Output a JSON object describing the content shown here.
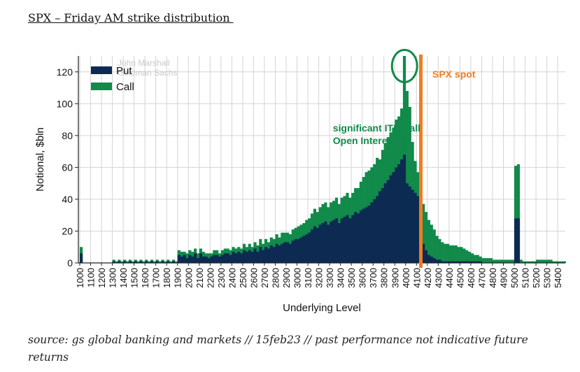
{
  "title": "SPX – Friday AM strike distribution ",
  "source": "source: gs global banking and markets // 15feb23 // past performance not indicative future returns",
  "colors": {
    "put": "#0d2b52",
    "call": "#118a4a",
    "spot": "#f07d1f",
    "circle": "#118a4a",
    "grid": "#d4d4d4"
  },
  "chart_data": {
    "type": "area",
    "title": "",
    "xlabel": "Underlying Level",
    "ylabel": "Notional, $bln",
    "ylim": [
      0,
      130
    ],
    "yticks": [
      0,
      20,
      40,
      60,
      80,
      100,
      120
    ],
    "xticks": [
      1000,
      1100,
      1200,
      1300,
      1400,
      1500,
      1600,
      1700,
      1800,
      1900,
      2000,
      2100,
      2200,
      2300,
      2400,
      2500,
      2600,
      2700,
      2800,
      2900,
      3000,
      3100,
      3200,
      3300,
      3400,
      3500,
      3600,
      3700,
      3800,
      3900,
      4000,
      4100,
      4200,
      4300,
      4400,
      4500,
      4600,
      4700,
      4800,
      4900,
      5000,
      5100,
      5200,
      5300,
      5400
    ],
    "grid": true,
    "legend": {
      "placement": "top-left",
      "entries": [
        "Put",
        "Call"
      ]
    },
    "watermark": "John Marshall\nGoldman Sachs",
    "annotations": [
      {
        "text": "significant ITM call\nOpen Interest",
        "x": 3550,
        "y": 86
      },
      {
        "text": "SPX spot",
        "x": 4270,
        "y": 122
      }
    ],
    "spot": 4140,
    "circle_center": [
      3990,
      125
    ],
    "x": [
      1000,
      1025,
      1050,
      1075,
      1100,
      1125,
      1150,
      1175,
      1200,
      1225,
      1250,
      1275,
      1300,
      1325,
      1350,
      1375,
      1400,
      1425,
      1450,
      1475,
      1500,
      1525,
      1550,
      1575,
      1600,
      1625,
      1650,
      1675,
      1700,
      1725,
      1750,
      1775,
      1800,
      1825,
      1850,
      1875,
      1900,
      1925,
      1950,
      1975,
      2000,
      2025,
      2050,
      2075,
      2100,
      2125,
      2150,
      2175,
      2200,
      2225,
      2250,
      2275,
      2300,
      2325,
      2350,
      2375,
      2400,
      2425,
      2450,
      2475,
      2500,
      2525,
      2550,
      2575,
      2600,
      2625,
      2650,
      2675,
      2700,
      2725,
      2750,
      2775,
      2800,
      2825,
      2850,
      2875,
      2900,
      2925,
      2950,
      2975,
      3000,
      3025,
      3050,
      3075,
      3100,
      3125,
      3150,
      3175,
      3200,
      3225,
      3250,
      3275,
      3300,
      3325,
      3350,
      3375,
      3400,
      3425,
      3450,
      3475,
      3500,
      3525,
      3550,
      3575,
      3600,
      3625,
      3650,
      3675,
      3700,
      3725,
      3750,
      3775,
      3800,
      3825,
      3850,
      3875,
      3900,
      3925,
      3950,
      3975,
      4000,
      4025,
      4050,
      4075,
      4100,
      4125,
      4150,
      4175,
      4200,
      4225,
      4250,
      4275,
      4300,
      4325,
      4350,
      4375,
      4400,
      4425,
      4450,
      4475,
      4500,
      4525,
      4550,
      4575,
      4600,
      4625,
      4650,
      4675,
      4700,
      4725,
      4750,
      4775,
      4800,
      4825,
      4850,
      4875,
      4900,
      4925,
      4950,
      4975,
      5000,
      5025,
      5050,
      5075,
      5100,
      5125,
      5150,
      5175,
      5200,
      5225,
      5250,
      5275,
      5300,
      5325,
      5350,
      5375,
      5400,
      5425,
      5450
    ],
    "series": [
      {
        "name": "Put",
        "values": [
          6,
          0,
          0,
          0,
          0,
          0,
          0,
          0,
          0,
          0,
          0,
          0,
          1,
          0,
          1,
          0,
          1,
          0,
          1,
          0,
          1,
          0,
          1,
          0,
          1,
          0,
          1,
          0,
          1,
          0,
          1,
          0,
          1,
          0,
          1,
          0,
          5,
          4,
          5,
          3,
          5,
          4,
          6,
          3,
          6,
          4,
          4,
          3,
          4,
          5,
          5,
          4,
          5,
          6,
          6,
          5,
          7,
          6,
          7,
          6,
          8,
          7,
          8,
          7,
          9,
          7,
          10,
          8,
          10,
          9,
          11,
          10,
          12,
          11,
          12,
          13,
          13,
          12,
          14,
          15,
          15,
          16,
          17,
          18,
          19,
          21,
          23,
          22,
          24,
          25,
          26,
          24,
          26,
          27,
          28,
          25,
          28,
          29,
          30,
          28,
          30,
          32,
          31,
          33,
          34,
          35,
          36,
          38,
          40,
          42,
          45,
          47,
          50,
          52,
          55,
          57,
          60,
          62,
          65,
          68,
          50,
          48,
          46,
          44,
          42,
          40,
          12,
          8,
          5,
          4,
          3,
          2,
          2,
          1,
          1,
          1,
          1,
          1,
          1,
          1,
          1,
          1,
          1,
          1,
          1,
          1,
          1,
          1,
          0,
          0,
          0,
          0,
          0,
          0,
          0,
          0,
          0,
          0,
          0,
          0,
          28,
          28,
          0,
          0,
          0,
          0,
          0,
          0,
          0,
          0,
          0,
          0,
          0,
          0,
          0,
          0,
          0,
          0,
          0
        ]
      },
      {
        "name": "Call",
        "values": [
          4,
          0,
          0,
          0,
          0,
          0,
          0,
          0,
          0,
          0,
          0,
          0,
          1,
          1,
          1,
          1,
          1,
          1,
          1,
          1,
          1,
          1,
          1,
          1,
          1,
          1,
          1,
          1,
          1,
          1,
          1,
          1,
          1,
          1,
          1,
          1,
          3,
          3,
          2,
          3,
          3,
          3,
          3,
          3,
          3,
          3,
          2,
          3,
          2,
          3,
          3,
          2,
          3,
          3,
          3,
          3,
          3,
          3,
          3,
          3,
          4,
          3,
          4,
          3,
          4,
          4,
          5,
          4,
          5,
          4,
          5,
          5,
          6,
          5,
          7,
          6,
          6,
          6,
          7,
          7,
          8,
          8,
          8,
          9,
          9,
          10,
          11,
          10,
          11,
          12,
          12,
          11,
          12,
          12,
          13,
          12,
          13,
          13,
          14,
          13,
          14,
          15,
          16,
          18,
          20,
          22,
          22,
          22,
          22,
          24,
          20,
          24,
          25,
          27,
          27,
          28,
          30,
          30,
          32,
          62,
          58,
          50,
          30,
          20,
          15,
          12,
          25,
          24,
          22,
          20,
          18,
          15,
          13,
          12,
          11,
          11,
          10,
          10,
          10,
          9,
          9,
          8,
          7,
          6,
          5,
          4,
          4,
          3,
          3,
          3,
          3,
          3,
          2,
          2,
          2,
          2,
          2,
          2,
          2,
          2,
          33,
          34,
          2,
          1,
          1,
          1,
          1,
          1,
          2,
          2,
          2,
          2,
          2,
          2,
          1,
          1,
          1,
          1,
          1
        ]
      }
    ]
  }
}
